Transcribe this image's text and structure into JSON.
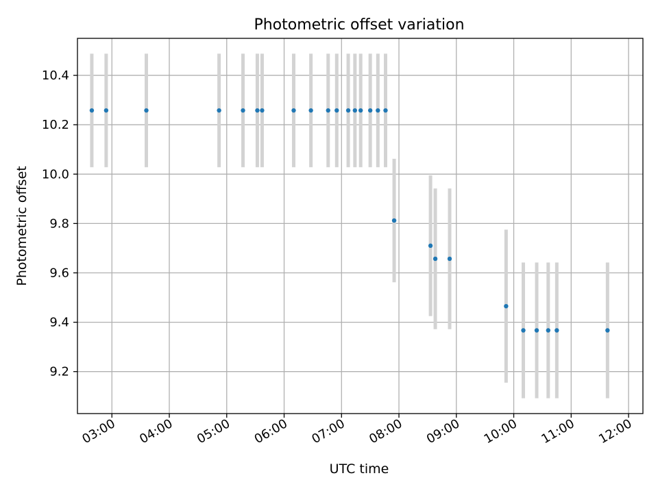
{
  "chart_data": {
    "type": "scatter",
    "title": "Photometric offset variation",
    "xlabel": "UTC time",
    "ylabel": "Photometric offset",
    "x_ticks": [
      "03:00",
      "04:00",
      "05:00",
      "06:00",
      "07:00",
      "08:00",
      "09:00",
      "10:00",
      "11:00",
      "12:00"
    ],
    "y_ticks": [
      "9.2",
      "9.4",
      "9.6",
      "9.8",
      "10.0",
      "10.2",
      "10.4"
    ],
    "xlim": [
      "02:24",
      "12:15"
    ],
    "ylim": [
      9.03,
      10.55
    ],
    "grid": true,
    "colors": {
      "point": "#1f77b4",
      "errorbar": "#d3d3d3",
      "grid": "#b0b0b0"
    },
    "points": [
      {
        "x": "02:39",
        "y": 10.258,
        "err": 0.23
      },
      {
        "x": "02:54",
        "y": 10.258,
        "err": 0.23
      },
      {
        "x": "03:36",
        "y": 10.258,
        "err": 0.23
      },
      {
        "x": "04:52",
        "y": 10.258,
        "err": 0.23
      },
      {
        "x": "05:17",
        "y": 10.258,
        "err": 0.23
      },
      {
        "x": "05:32",
        "y": 10.258,
        "err": 0.23
      },
      {
        "x": "05:37",
        "y": 10.258,
        "err": 0.23
      },
      {
        "x": "06:10",
        "y": 10.258,
        "err": 0.23
      },
      {
        "x": "06:28",
        "y": 10.258,
        "err": 0.23
      },
      {
        "x": "06:46",
        "y": 10.258,
        "err": 0.23
      },
      {
        "x": "06:55",
        "y": 10.258,
        "err": 0.23
      },
      {
        "x": "07:07",
        "y": 10.258,
        "err": 0.23
      },
      {
        "x": "07:14",
        "y": 10.258,
        "err": 0.23
      },
      {
        "x": "07:20",
        "y": 10.258,
        "err": 0.23
      },
      {
        "x": "07:30",
        "y": 10.258,
        "err": 0.23
      },
      {
        "x": "07:38",
        "y": 10.258,
        "err": 0.23
      },
      {
        "x": "07:46",
        "y": 10.258,
        "err": 0.23
      },
      {
        "x": "07:55",
        "y": 9.812,
        "err": 0.25
      },
      {
        "x": "08:33",
        "y": 9.71,
        "err": 0.285
      },
      {
        "x": "08:38",
        "y": 9.657,
        "err": 0.285
      },
      {
        "x": "08:53",
        "y": 9.657,
        "err": 0.285
      },
      {
        "x": "09:52",
        "y": 9.465,
        "err": 0.31
      },
      {
        "x": "10:10",
        "y": 9.367,
        "err": 0.275
      },
      {
        "x": "10:24",
        "y": 9.367,
        "err": 0.275
      },
      {
        "x": "10:36",
        "y": 9.367,
        "err": 0.275
      },
      {
        "x": "10:45",
        "y": 9.367,
        "err": 0.275
      },
      {
        "x": "11:38",
        "y": 9.367,
        "err": 0.275
      }
    ]
  }
}
